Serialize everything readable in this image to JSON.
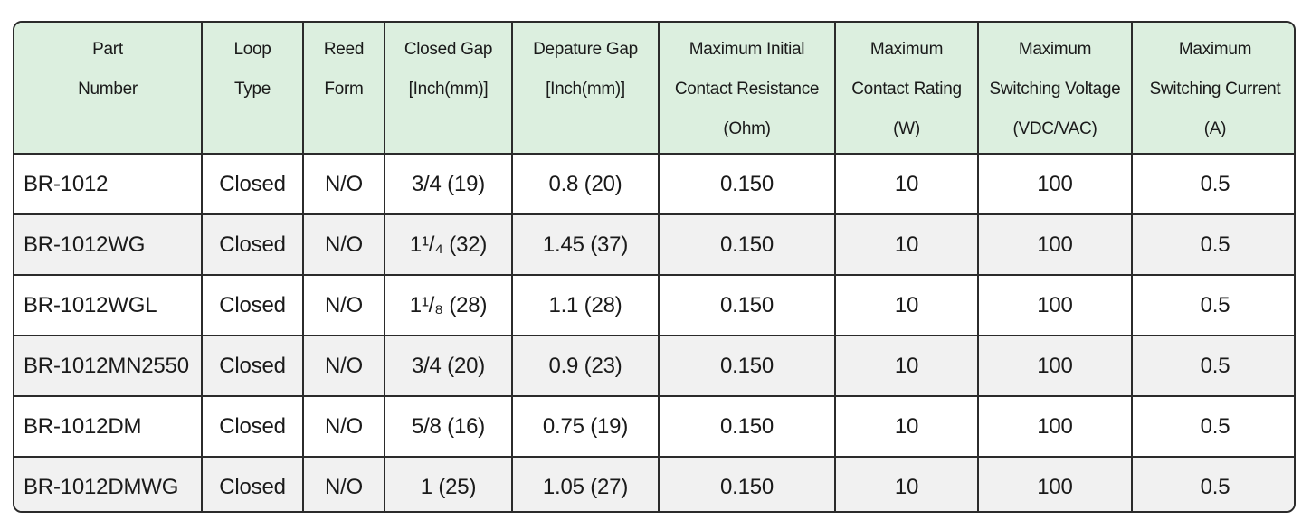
{
  "table": {
    "header": [
      [
        "Part",
        "Number"
      ],
      [
        "Loop",
        "Type"
      ],
      [
        "Reed",
        "Form"
      ],
      [
        "Closed Gap",
        "[Inch(mm)]"
      ],
      [
        "Depature Gap",
        "[Inch(mm)]"
      ],
      [
        "Maximum Initial",
        "Contact Resistance",
        "(Ohm)"
      ],
      [
        "Maximum",
        "Contact Rating",
        "(W)"
      ],
      [
        "Maximum",
        "Switching Voltage",
        "(VDC/VAC)"
      ],
      [
        "Maximum",
        "Switching Current",
        "(A)"
      ]
    ],
    "rows": [
      [
        "BR-1012",
        "Closed",
        "N/O",
        "3/4 (19)",
        "0.8 (20)",
        "0.150",
        "10",
        "100",
        "0.5"
      ],
      [
        "BR-1012WG",
        "Closed",
        "N/O",
        "1¹/₄ (32)",
        "1.45 (37)",
        "0.150",
        "10",
        "100",
        "0.5"
      ],
      [
        "BR-1012WGL",
        "Closed",
        "N/O",
        "1¹/₈ (28)",
        "1.1 (28)",
        "0.150",
        "10",
        "100",
        "0.5"
      ],
      [
        "BR-1012MN2550",
        "Closed",
        "N/O",
        "3/4 (20)",
        "0.9 (23)",
        "0.150",
        "10",
        "100",
        "0.5"
      ],
      [
        "BR-1012DM",
        "Closed",
        "N/O",
        "5/8 (16)",
        "0.75 (19)",
        "0.150",
        "10",
        "100",
        "0.5"
      ],
      [
        "BR-1012DMWG",
        "Closed",
        "N/O",
        "1 (25)",
        "1.05 (27)",
        "0.150",
        "10",
        "100",
        "0.5"
      ]
    ]
  }
}
